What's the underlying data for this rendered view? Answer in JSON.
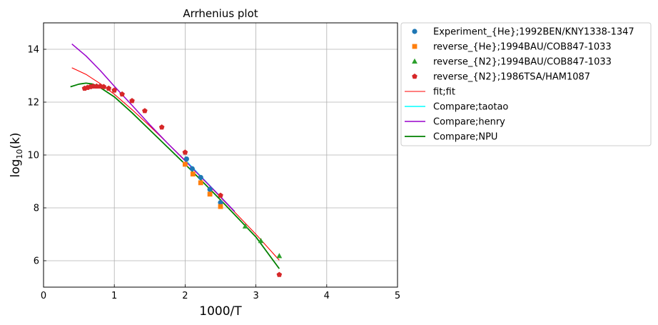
{
  "chart_data": {
    "type": "scatter",
    "title": "Arrhenius plot",
    "xlabel": "1000/T",
    "ylabel": {
      "base": "log",
      "sub": "10",
      "rest": "(k)"
    },
    "xlim": [
      0,
      5
    ],
    "ylim": [
      5,
      15
    ],
    "xticks": [
      "0",
      "1",
      "2",
      "3",
      "4",
      "5"
    ],
    "yticks": [
      "6",
      "8",
      "10",
      "12",
      "14"
    ],
    "grid": true,
    "legend_placement": "outside-upper-right",
    "scatter_series": [
      {
        "name": "Experiment_{He};1992BEN/KNY1338-1347",
        "marker": "circle",
        "color": "#1f77b4",
        "points": [
          [
            2.02,
            9.85
          ],
          [
            2.1,
            9.48
          ],
          [
            2.22,
            9.15
          ],
          [
            2.35,
            8.7
          ],
          [
            2.5,
            8.2
          ]
        ]
      },
      {
        "name": "reverse_{He};1994BAU/COB847-1033",
        "marker": "square",
        "color": "#ff7f0e",
        "points": [
          [
            2.0,
            9.65
          ],
          [
            2.11,
            9.28
          ],
          [
            2.22,
            8.95
          ],
          [
            2.35,
            8.52
          ],
          [
            2.5,
            8.05
          ]
        ]
      },
      {
        "name": "reverse_{N2};1994BAU/COB847-1033",
        "marker": "triangle",
        "color": "#2ca02c",
        "points": [
          [
            2.85,
            7.3
          ],
          [
            3.07,
            6.75
          ],
          [
            3.33,
            6.18
          ]
        ]
      },
      {
        "name": "reverse_{N2};1986TSA/HAM1087",
        "marker": "pentagon",
        "color": "#d62728",
        "points": [
          [
            0.58,
            12.52
          ],
          [
            0.62,
            12.55
          ],
          [
            0.66,
            12.58
          ],
          [
            0.7,
            12.6
          ],
          [
            0.75,
            12.6
          ],
          [
            0.8,
            12.6
          ],
          [
            0.85,
            12.58
          ],
          [
            0.92,
            12.52
          ],
          [
            1.0,
            12.45
          ],
          [
            1.11,
            12.3
          ],
          [
            1.25,
            12.05
          ],
          [
            1.43,
            11.67
          ],
          [
            1.67,
            11.05
          ],
          [
            2.0,
            10.1
          ],
          [
            2.5,
            8.47
          ],
          [
            3.33,
            5.47
          ]
        ]
      }
    ],
    "line_series": [
      {
        "name": "fit;fit",
        "color": "#ff0000",
        "width": 1.1,
        "points": [
          [
            0.4,
            13.3
          ],
          [
            0.6,
            13.05
          ],
          [
            0.8,
            12.7
          ],
          [
            1.0,
            12.3
          ],
          [
            1.25,
            11.72
          ],
          [
            1.5,
            11.1
          ],
          [
            1.75,
            10.45
          ],
          [
            2.0,
            9.8
          ],
          [
            2.25,
            9.1
          ],
          [
            2.5,
            8.4
          ],
          [
            2.75,
            7.7
          ],
          [
            3.0,
            7.0
          ],
          [
            3.33,
            6.02
          ]
        ]
      },
      {
        "name": "Compare;taotao",
        "color": "#00ffff",
        "width": 1.5,
        "points": [
          [
            2.0,
            9.82
          ],
          [
            2.25,
            9.12
          ],
          [
            2.5,
            8.42
          ],
          [
            2.7,
            7.86
          ]
        ]
      },
      {
        "name": "Compare;henry",
        "color": "#9900cc",
        "width": 1.5,
        "points": [
          [
            0.4,
            14.2
          ],
          [
            0.6,
            13.75
          ],
          [
            0.8,
            13.2
          ],
          [
            1.0,
            12.6
          ],
          [
            1.25,
            11.88
          ],
          [
            1.5,
            11.15
          ],
          [
            1.75,
            10.45
          ],
          [
            2.0,
            9.78
          ],
          [
            2.25,
            9.1
          ],
          [
            2.5,
            8.42
          ],
          [
            2.7,
            7.86
          ]
        ]
      },
      {
        "name": "Compare;NPU",
        "color": "#008000",
        "width": 1.8,
        "points": [
          [
            0.38,
            12.58
          ],
          [
            0.5,
            12.68
          ],
          [
            0.6,
            12.72
          ],
          [
            0.7,
            12.68
          ],
          [
            0.8,
            12.55
          ],
          [
            1.0,
            12.2
          ],
          [
            1.25,
            11.6
          ],
          [
            1.5,
            10.95
          ],
          [
            1.75,
            10.3
          ],
          [
            2.0,
            9.65
          ],
          [
            2.25,
            8.98
          ],
          [
            2.5,
            8.3
          ],
          [
            2.75,
            7.6
          ],
          [
            3.0,
            6.9
          ],
          [
            3.33,
            5.7
          ]
        ]
      }
    ]
  }
}
